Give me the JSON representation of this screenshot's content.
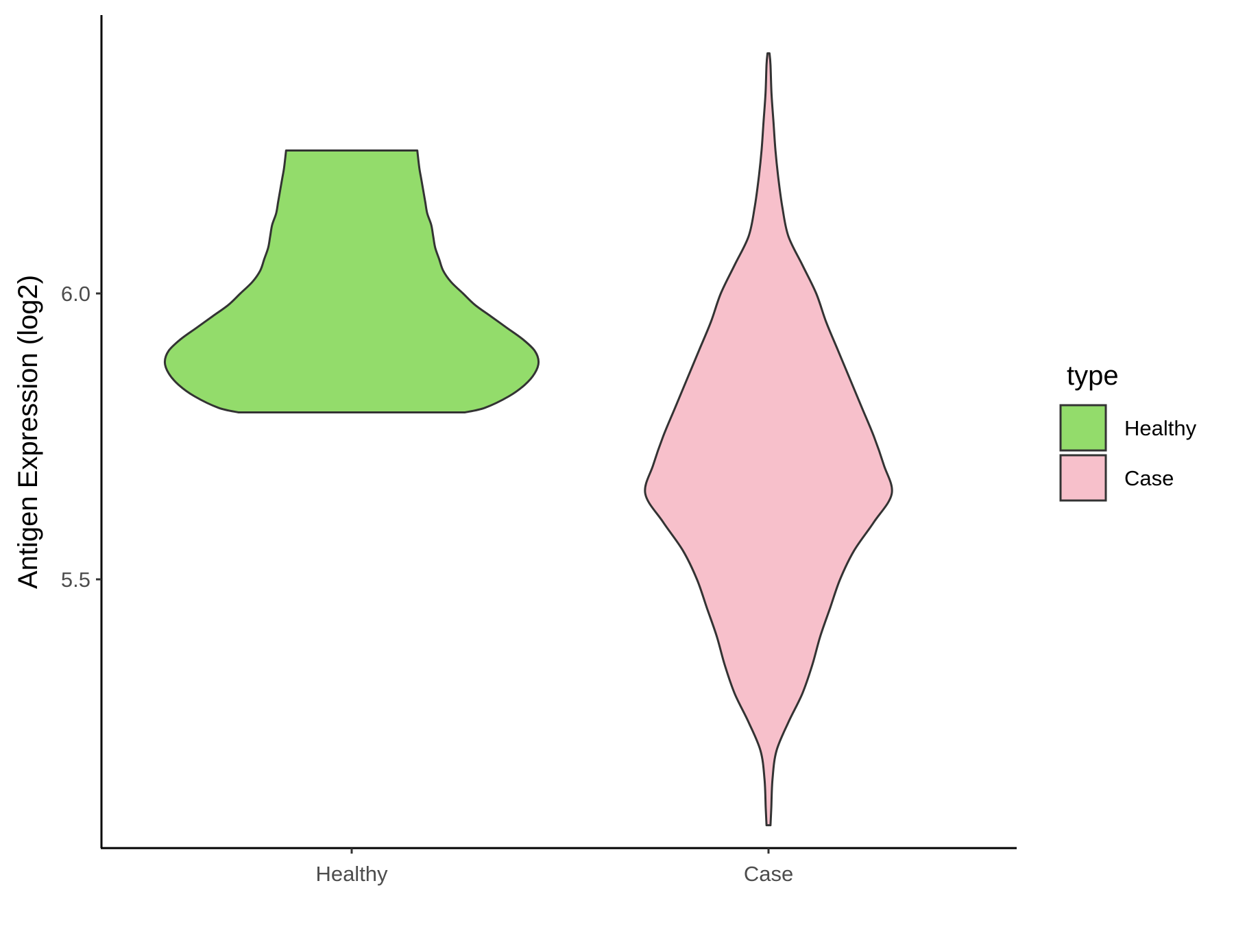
{
  "chart_data": {
    "type": "violin",
    "ylabel": "Antigen Expression (log2)",
    "xlabel": "",
    "categories": [
      "Healthy",
      "Case"
    ],
    "y_ticks": [
      5.5,
      6.0
    ],
    "y_tick_labels": [
      "5.5",
      "6.0"
    ],
    "ylim": [
      5.05,
      6.5
    ],
    "grid": false,
    "legend": {
      "title": "type",
      "position": "right",
      "entries": [
        {
          "label": "Healthy",
          "color": "#93DC6B"
        },
        {
          "label": "Case",
          "color": "#F7C0CB"
        }
      ]
    },
    "outline_color": "#333333",
    "series": [
      {
        "name": "Healthy",
        "color": "#93DC6B",
        "density_profile": [
          [
            5.792,
            0.57
          ],
          [
            5.8,
            0.67
          ],
          [
            5.82,
            0.79
          ],
          [
            5.84,
            0.87
          ],
          [
            5.86,
            0.92
          ],
          [
            5.88,
            0.94
          ],
          [
            5.9,
            0.92
          ],
          [
            5.92,
            0.86
          ],
          [
            5.94,
            0.78
          ],
          [
            5.96,
            0.7
          ],
          [
            5.98,
            0.62
          ],
          [
            6.0,
            0.56
          ],
          [
            6.02,
            0.5
          ],
          [
            6.04,
            0.46
          ],
          [
            6.06,
            0.44
          ],
          [
            6.08,
            0.42
          ],
          [
            6.1,
            0.41
          ],
          [
            6.12,
            0.4
          ],
          [
            6.14,
            0.38
          ],
          [
            6.16,
            0.37
          ],
          [
            6.18,
            0.36
          ],
          [
            6.2,
            0.35
          ],
          [
            6.22,
            0.34
          ],
          [
            6.25,
            0.33
          ]
        ]
      },
      {
        "name": "Case",
        "color": "#F7C0CB",
        "density_profile": [
          [
            5.07,
            0.01
          ],
          [
            5.1,
            0.014
          ],
          [
            5.15,
            0.02
          ],
          [
            5.2,
            0.04
          ],
          [
            5.25,
            0.1
          ],
          [
            5.3,
            0.17
          ],
          [
            5.35,
            0.22
          ],
          [
            5.4,
            0.26
          ],
          [
            5.45,
            0.31
          ],
          [
            5.5,
            0.36
          ],
          [
            5.55,
            0.43
          ],
          [
            5.6,
            0.53
          ],
          [
            5.65,
            0.62
          ],
          [
            5.7,
            0.58
          ],
          [
            5.75,
            0.53
          ],
          [
            5.8,
            0.47
          ],
          [
            5.85,
            0.41
          ],
          [
            5.9,
            0.35
          ],
          [
            5.95,
            0.29
          ],
          [
            6.0,
            0.24
          ],
          [
            6.05,
            0.17
          ],
          [
            6.1,
            0.1
          ],
          [
            6.15,
            0.07
          ],
          [
            6.2,
            0.05
          ],
          [
            6.25,
            0.035
          ],
          [
            6.3,
            0.025
          ],
          [
            6.35,
            0.015
          ],
          [
            6.4,
            0.01
          ],
          [
            6.42,
            0.005
          ]
        ]
      }
    ]
  }
}
